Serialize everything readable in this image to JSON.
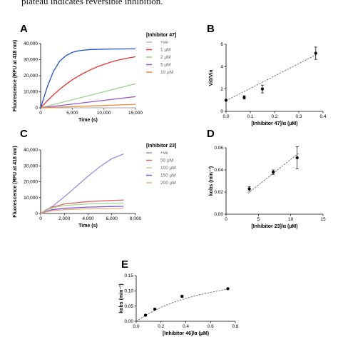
{
  "header_text": "plateau indicates reversible inhibition.",
  "chart_data": [
    {
      "panel": "A",
      "type": "line",
      "ylabel": "Fluorescence (RFU at 418 nm)",
      "xlabel": "Time (s)",
      "xlim": [
        0,
        15000
      ],
      "ylim": [
        0,
        40000
      ],
      "x_ticks": [
        "0",
        "5,000",
        "10,000",
        "15,000"
      ],
      "y_ticks": [
        "0",
        "10,000",
        "20,000",
        "30,000",
        "40,000"
      ],
      "legend_title": "[Inhibitor 47]",
      "series": [
        {
          "name": "+ve",
          "color": "#bbbbbb",
          "x": [
            0,
            3000,
            6000,
            15000
          ],
          "y": [
            0,
            0,
            0,
            0
          ]
        },
        {
          "name": "1 µM",
          "color": "#e8352e",
          "x": [
            0,
            1000,
            2000,
            3000,
            4000,
            5000,
            6000,
            7000,
            8000,
            9000,
            10000,
            11000,
            12000,
            13000,
            14000,
            15000
          ],
          "y": [
            0,
            4200,
            8000,
            11500,
            14600,
            17400,
            19800,
            22000,
            23900,
            25600,
            27000,
            28300,
            29400,
            30300,
            31100,
            31800
          ]
        },
        {
          "name": "2 µM",
          "color": "#9ad08a",
          "x": [
            0,
            15000
          ],
          "y": [
            0,
            15000
          ]
        },
        {
          "name": "5 µM",
          "color": "#9b59d0",
          "x": [
            0,
            15000
          ],
          "y": [
            0,
            7000
          ]
        },
        {
          "name": "10 µM",
          "color": "#f08a3a",
          "x": [
            0,
            15000
          ],
          "y": [
            0,
            2200
          ]
        },
        {
          "name": "",
          "color": "#1f4fd8",
          "x": [
            0,
            1000,
            2000,
            3000,
            4000,
            5000,
            6000,
            7000,
            8000,
            10000,
            12000,
            15000
          ],
          "y": [
            0,
            12500,
            22500,
            29000,
            32500,
            34500,
            35500,
            36000,
            36300,
            36500,
            36600,
            36700
          ]
        }
      ]
    },
    {
      "panel": "B",
      "type": "scatter",
      "ylabel": "Vi0/Vin",
      "xlabel": "[Inhibitor 47]/α (µM)",
      "xlim": [
        0,
        0.4
      ],
      "ylim": [
        0,
        6
      ],
      "x_ticks": [
        "0.0",
        "0.1",
        "0.2",
        "0.3",
        "0.4"
      ],
      "y_ticks": [
        "0",
        "2",
        "4",
        "6"
      ],
      "points": [
        {
          "x": 0.0,
          "y": 1.0,
          "err": 0
        },
        {
          "x": 0.075,
          "y": 1.25,
          "err": 0.15
        },
        {
          "x": 0.15,
          "y": 2.0,
          "err": 0.35
        },
        {
          "x": 0.37,
          "y": 5.2,
          "err": 0.55
        }
      ],
      "fit": {
        "x": [
          0,
          0.37
        ],
        "y": [
          0.95,
          5.05
        ]
      }
    },
    {
      "panel": "C",
      "type": "line",
      "ylabel": "Fluorescence (RFU at 418 nm)",
      "xlabel": "Time (s)",
      "xlim": [
        0,
        8000
      ],
      "ylim": [
        0,
        40000
      ],
      "x_ticks": [
        "0",
        "2,000",
        "4,000",
        "6,000",
        "8,000"
      ],
      "y_ticks": [
        "0",
        "10,000",
        "20,000",
        "30,000",
        "40,000"
      ],
      "legend_title": "[Inhibitor 23]",
      "series": [
        {
          "name": "+ve",
          "color": "#8f8fe8",
          "x": [
            0,
            1000,
            2000,
            3000,
            4000,
            5000,
            6000,
            7000
          ],
          "y": [
            0,
            4500,
            10500,
            17000,
            23500,
            29500,
            34500,
            37500
          ]
        },
        {
          "name": "50 µM",
          "color": "#e06060",
          "x": [
            0,
            500,
            1000,
            2000,
            4000,
            6000,
            7000
          ],
          "y": [
            0,
            2500,
            4000,
            6000,
            7500,
            8200,
            8500
          ]
        },
        {
          "name": "100 µM",
          "color": "#a8d898",
          "x": [
            0,
            500,
            1000,
            2000,
            4000,
            6000,
            7000
          ],
          "y": [
            0,
            2200,
            3500,
            5000,
            6000,
            6400,
            6600
          ]
        },
        {
          "name": "150 µM",
          "color": "#7b5ad8",
          "x": [
            0,
            500,
            1000,
            2000,
            4000,
            6000,
            7000
          ],
          "y": [
            0,
            1500,
            2400,
            3300,
            4000,
            4400,
            4500
          ]
        },
        {
          "name": "200 µM",
          "color": "#f0b080",
          "x": [
            0,
            500,
            1000,
            2000,
            4000,
            6000,
            7000
          ],
          "y": [
            0,
            1000,
            1700,
            2400,
            2900,
            3100,
            3200
          ]
        }
      ]
    },
    {
      "panel": "D",
      "type": "scatter",
      "ylabel": "kobs (min⁻¹)",
      "xlabel": "[Inhibitor 23]/α (µM)",
      "xlim": [
        0,
        15
      ],
      "ylim": [
        0,
        0.06
      ],
      "x_ticks": [
        "0",
        "5",
        "10",
        "15"
      ],
      "y_ticks": [
        "0.00",
        "0.02",
        "0.04",
        "0.06"
      ],
      "points": [
        {
          "x": 3.6,
          "y": 0.023,
          "err": 0.002
        },
        {
          "x": 7.3,
          "y": 0.038,
          "err": 0.002
        },
        {
          "x": 11.0,
          "y": 0.051,
          "err": 0.01
        }
      ],
      "fit": {
        "x": [
          3.4,
          11.2
        ],
        "y": [
          0.019,
          0.055
        ]
      }
    },
    {
      "panel": "E",
      "type": "scatter",
      "ylabel": "kobs (min⁻¹)",
      "xlabel": "[Inhibitor 46]/α (µM)",
      "xlim": [
        0,
        0.8
      ],
      "ylim": [
        0,
        0.15
      ],
      "x_ticks": [
        "0.0",
        "0.2",
        "0.4",
        "0.6",
        "0.8"
      ],
      "y_ticks": [
        "0.00",
        "0.05",
        "0.10",
        "0.15"
      ],
      "points": [
        {
          "x": 0.075,
          "y": 0.02,
          "err": 0.002
        },
        {
          "x": 0.15,
          "y": 0.04,
          "err": 0.002
        },
        {
          "x": 0.37,
          "y": 0.082,
          "err": 0.003
        },
        {
          "x": 0.74,
          "y": 0.107,
          "err": 0.002
        }
      ],
      "fit": {
        "x": [
          0.0,
          0.05,
          0.1,
          0.15,
          0.2,
          0.3,
          0.4,
          0.5,
          0.6,
          0.74
        ],
        "y": [
          0.0,
          0.013,
          0.025,
          0.036,
          0.046,
          0.062,
          0.075,
          0.086,
          0.095,
          0.106
        ]
      }
    }
  ]
}
